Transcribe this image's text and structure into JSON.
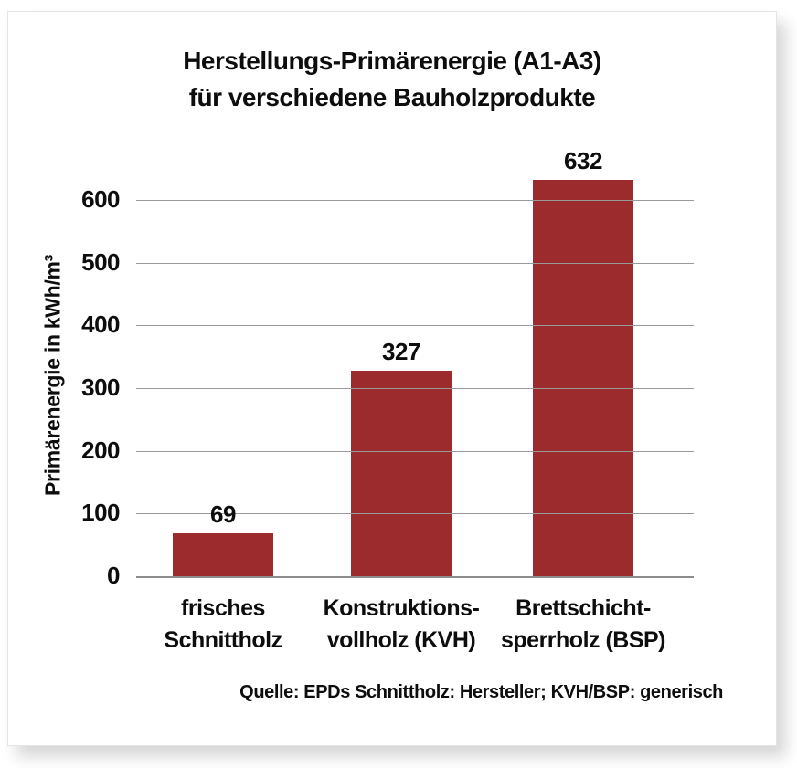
{
  "page": {
    "background": "#ffffff",
    "card_background": "#ffffff",
    "card_border_color": "#e4e4e4"
  },
  "chart_data": {
    "type": "bar",
    "title_lines": [
      "Herstellungs-Primärenergie (A1-A3)",
      "für verschiedene Bauholzprodukte"
    ],
    "title": "Herstellungs-Primärenergie (A1-A3) für verschiedene Bauholzprodukte",
    "ylabel": "Primärenergie in kWh/m³",
    "xlabel": "",
    "yticks": [
      0,
      100,
      200,
      300,
      400,
      500,
      600
    ],
    "ylim": [
      0,
      660
    ],
    "grid": true,
    "legend": false,
    "categories": [
      {
        "line1": "frisches",
        "line2": "Schnittholz"
      },
      {
        "line1": "Konstruktions-",
        "line2": "vollholz (KVH)"
      },
      {
        "line1": "Brettschicht-",
        "line2": "sperrholz (BSP)"
      }
    ],
    "values": [
      69,
      327,
      632
    ],
    "bar_color": "#9B2B2C",
    "grid_color": "#9a9a9a",
    "axis_color": "#8c8c8c",
    "text_color": "#0d0d0d",
    "source": "Quelle: EPDs Schnittholz: Hersteller; KVH/BSP: generisch"
  }
}
